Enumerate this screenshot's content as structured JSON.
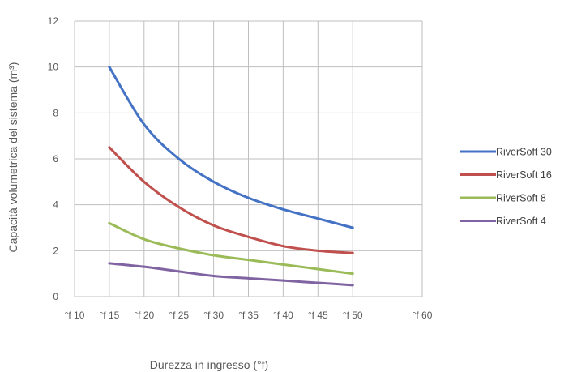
{
  "chart_data": {
    "type": "line",
    "xlabel": "Durezza in ingresso (°f)",
    "ylabel": "Capacità volumetrica del sistema (m³)",
    "xlim": [
      10,
      60
    ],
    "ylim": [
      0,
      12
    ],
    "x_ticks": [
      10,
      15,
      20,
      25,
      30,
      35,
      40,
      45,
      50,
      60
    ],
    "x_tick_labels": [
      "°f 10",
      "°f 15",
      "°f 20",
      "°f 25",
      "°f 30",
      "°f 35",
      "°f 40",
      "°f 45",
      "°f 50",
      "°f 60"
    ],
    "y_ticks": [
      0,
      2,
      4,
      6,
      8,
      10,
      12
    ],
    "y_tick_labels": [
      "0",
      "2",
      "4",
      "6",
      "8",
      "10",
      "12"
    ],
    "grid": true,
    "legend_position": "right",
    "x": [
      15,
      20,
      25,
      30,
      35,
      40,
      45,
      50
    ],
    "series": [
      {
        "name": "RiverSoft 30",
        "color": "#4472c4",
        "values": [
          10.0,
          7.5,
          6.0,
          5.0,
          4.3,
          3.8,
          3.4,
          3.0
        ]
      },
      {
        "name": "RiverSoft 16",
        "color": "#c0504d",
        "values": [
          6.5,
          5.0,
          3.9,
          3.1,
          2.6,
          2.2,
          2.0,
          1.9
        ]
      },
      {
        "name": "RiverSoft 8",
        "color": "#9bbb59",
        "values": [
          3.2,
          2.5,
          2.1,
          1.8,
          1.6,
          1.4,
          1.2,
          1.0
        ]
      },
      {
        "name": "RiverSoft 4",
        "color": "#8064a2",
        "values": [
          1.45,
          1.3,
          1.1,
          0.9,
          0.8,
          0.7,
          0.6,
          0.5
        ]
      }
    ]
  }
}
